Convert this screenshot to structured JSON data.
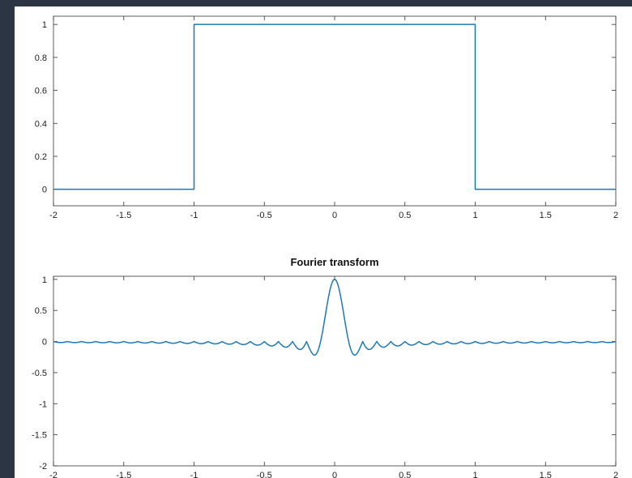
{
  "chart_data": [
    {
      "type": "line",
      "title": "",
      "xlabel": "",
      "ylabel": "",
      "xlim": [
        -2,
        2
      ],
      "ylim": [
        -0.1,
        1.05
      ],
      "grid": false,
      "color": "#1f77b4",
      "xticks": [
        -2,
        -1.5,
        -1,
        -0.5,
        0,
        0.5,
        1,
        1.5,
        2
      ],
      "xtick_labels": [
        "-2",
        "-1.5",
        "-1",
        "-0.5",
        "0",
        "0.5",
        "1",
        "1.5",
        "2"
      ],
      "yticks": [
        0,
        0.2,
        0.4,
        0.6,
        0.8,
        1
      ],
      "ytick_labels": [
        "0",
        "0.2",
        "0.4",
        "0.6",
        "0.8",
        "1"
      ],
      "series": [
        {
          "x": [
            -2,
            -1,
            -1,
            1,
            1,
            2
          ],
          "y": [
            0,
            0,
            1,
            1,
            0,
            0
          ]
        }
      ]
    },
    {
      "type": "line",
      "title": "Fourier transform",
      "xlabel": "",
      "ylabel": "",
      "xlim": [
        -2,
        2
      ],
      "ylim": [
        -2,
        1.05
      ],
      "grid": false,
      "color": "#1f77b4",
      "xticks": [
        -2,
        -1.5,
        -1,
        -0.5,
        0,
        0.5,
        1,
        1.5,
        2
      ],
      "xtick_labels": [
        "-2",
        "-1.5",
        "-1",
        "-0.5",
        "0",
        "0.5",
        "1",
        "1.5",
        "2"
      ],
      "yticks": [
        -2,
        -1.5,
        -1,
        -0.5,
        0,
        0.5,
        1
      ],
      "ytick_labels": [
        "-2",
        "-1.5",
        "-1",
        "-0.5",
        "0",
        "0.5",
        "1"
      ],
      "series": [
        {
          "function": "sinc with sign-alternating lobes",
          "lobe_spacing": 0.1
        }
      ]
    }
  ]
}
